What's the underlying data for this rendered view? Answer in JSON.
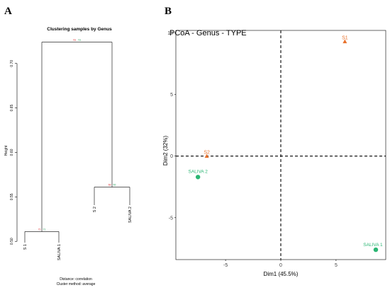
{
  "panels": {
    "a_label": "A",
    "b_label": "B"
  },
  "colors": {
    "red": "#e41a1c",
    "green": "#2ca25f",
    "orange": "#e8702a",
    "saliva_green": "#2bb673",
    "axis": "#000000"
  },
  "chart_data": [
    {
      "type": "dendrogram",
      "title": "Clustering samples by Genus",
      "ylabel": "Height",
      "ylim": [
        0.497,
        0.73
      ],
      "yticks": [
        0.5,
        0.55,
        0.6,
        0.65,
        0.7
      ],
      "ytick_labels": [
        "0.50",
        "0.55",
        "0.60",
        "0.65",
        "0.70"
      ],
      "leaves": [
        "S 1",
        "SALIVA 1",
        "S 2",
        "SALIVA 2"
      ],
      "merges": [
        {
          "left": "S 1",
          "right": "SALIVA 1",
          "height": 0.511,
          "labels": [
            "71",
            "71"
          ]
        },
        {
          "left": "S 2",
          "right": "SALIVA 2",
          "height": 0.561,
          "labels": [
            "69",
            "56"
          ]
        },
        {
          "left": "cluster-1",
          "right": "cluster-2",
          "height": 0.724,
          "labels": [
            "na",
            "na"
          ]
        }
      ],
      "footer": [
        "Distance:  correlation",
        "Cluster method:  average"
      ]
    },
    {
      "type": "scatter",
      "title": "PCoA - Genus - TYPE",
      "xlabel": "Dim1 (45.5%)",
      "ylabel": "Dim2 (32%)",
      "xlim": [
        -9.5,
        9.5
      ],
      "ylim": [
        -8.4,
        10.2
      ],
      "xticks": [
        -5,
        0,
        5
      ],
      "xtick_labels": [
        "-5",
        "0",
        "5"
      ],
      "yticks": [
        -5,
        0,
        5,
        10
      ],
      "ytick_labels": [
        "-5",
        "0",
        "5",
        "10"
      ],
      "grid": false,
      "zero_lines": true,
      "points": [
        {
          "label": "S1",
          "x": 5.8,
          "y": 9.3,
          "marker": "triangle",
          "color": "#e8702a"
        },
        {
          "label": "S2",
          "x": -6.7,
          "y": 0.0,
          "marker": "triangle",
          "color": "#e8702a"
        },
        {
          "label": "SALIVA 2",
          "x": -7.5,
          "y": -1.7,
          "marker": "circle",
          "color": "#2bb673"
        },
        {
          "label": "SALIVA 1",
          "x": 8.6,
          "y": -7.6,
          "marker": "circle",
          "color": "#2bb673"
        }
      ]
    }
  ]
}
